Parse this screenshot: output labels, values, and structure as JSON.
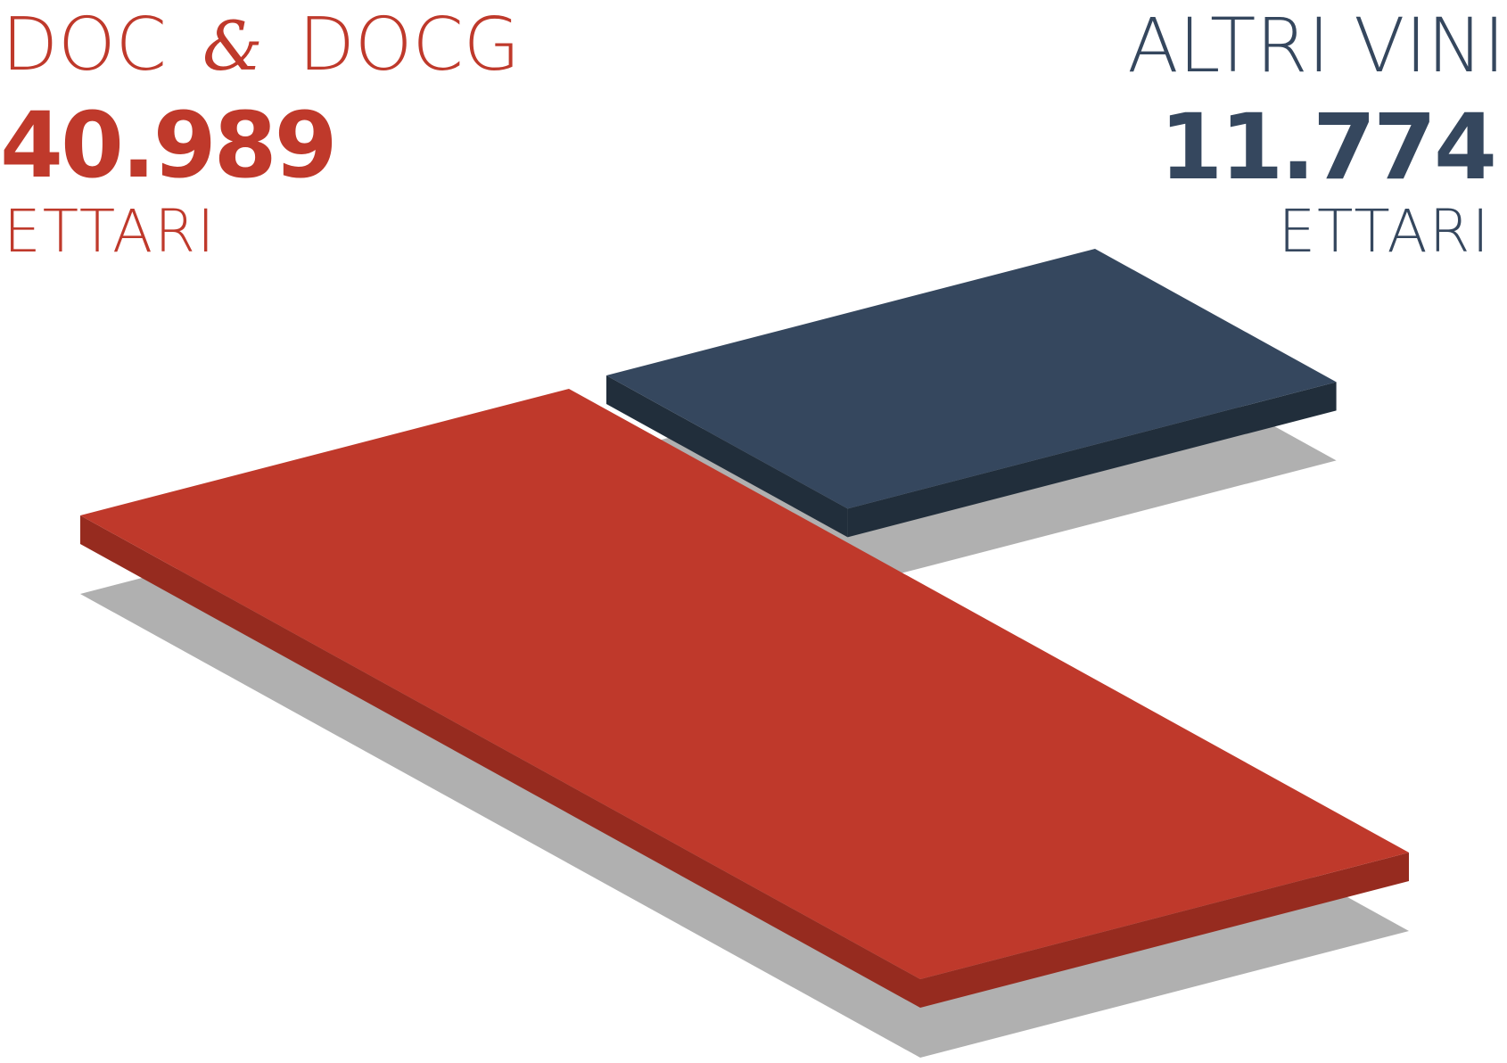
{
  "chart_data": {
    "type": "bar",
    "categories": [
      "DOC & DOCG",
      "ALTRI VINI"
    ],
    "values": [
      40989,
      11774
    ],
    "unit": "ETTARI",
    "series": [
      {
        "label_main": "DOC",
        "label_amp": "&",
        "label_rest": "DOCG",
        "value_text": "40.989",
        "unit": "ETTARI",
        "value": 40989,
        "color": "#bf392b",
        "side_color": "#962b1f"
      },
      {
        "label_main": "ALTRI VINI",
        "value_text": "11.774",
        "unit": "ETTARI",
        "value": 11774,
        "color": "#35475e",
        "side_color": "#212e3b"
      }
    ],
    "shadow_color": "#b0b0b0"
  }
}
